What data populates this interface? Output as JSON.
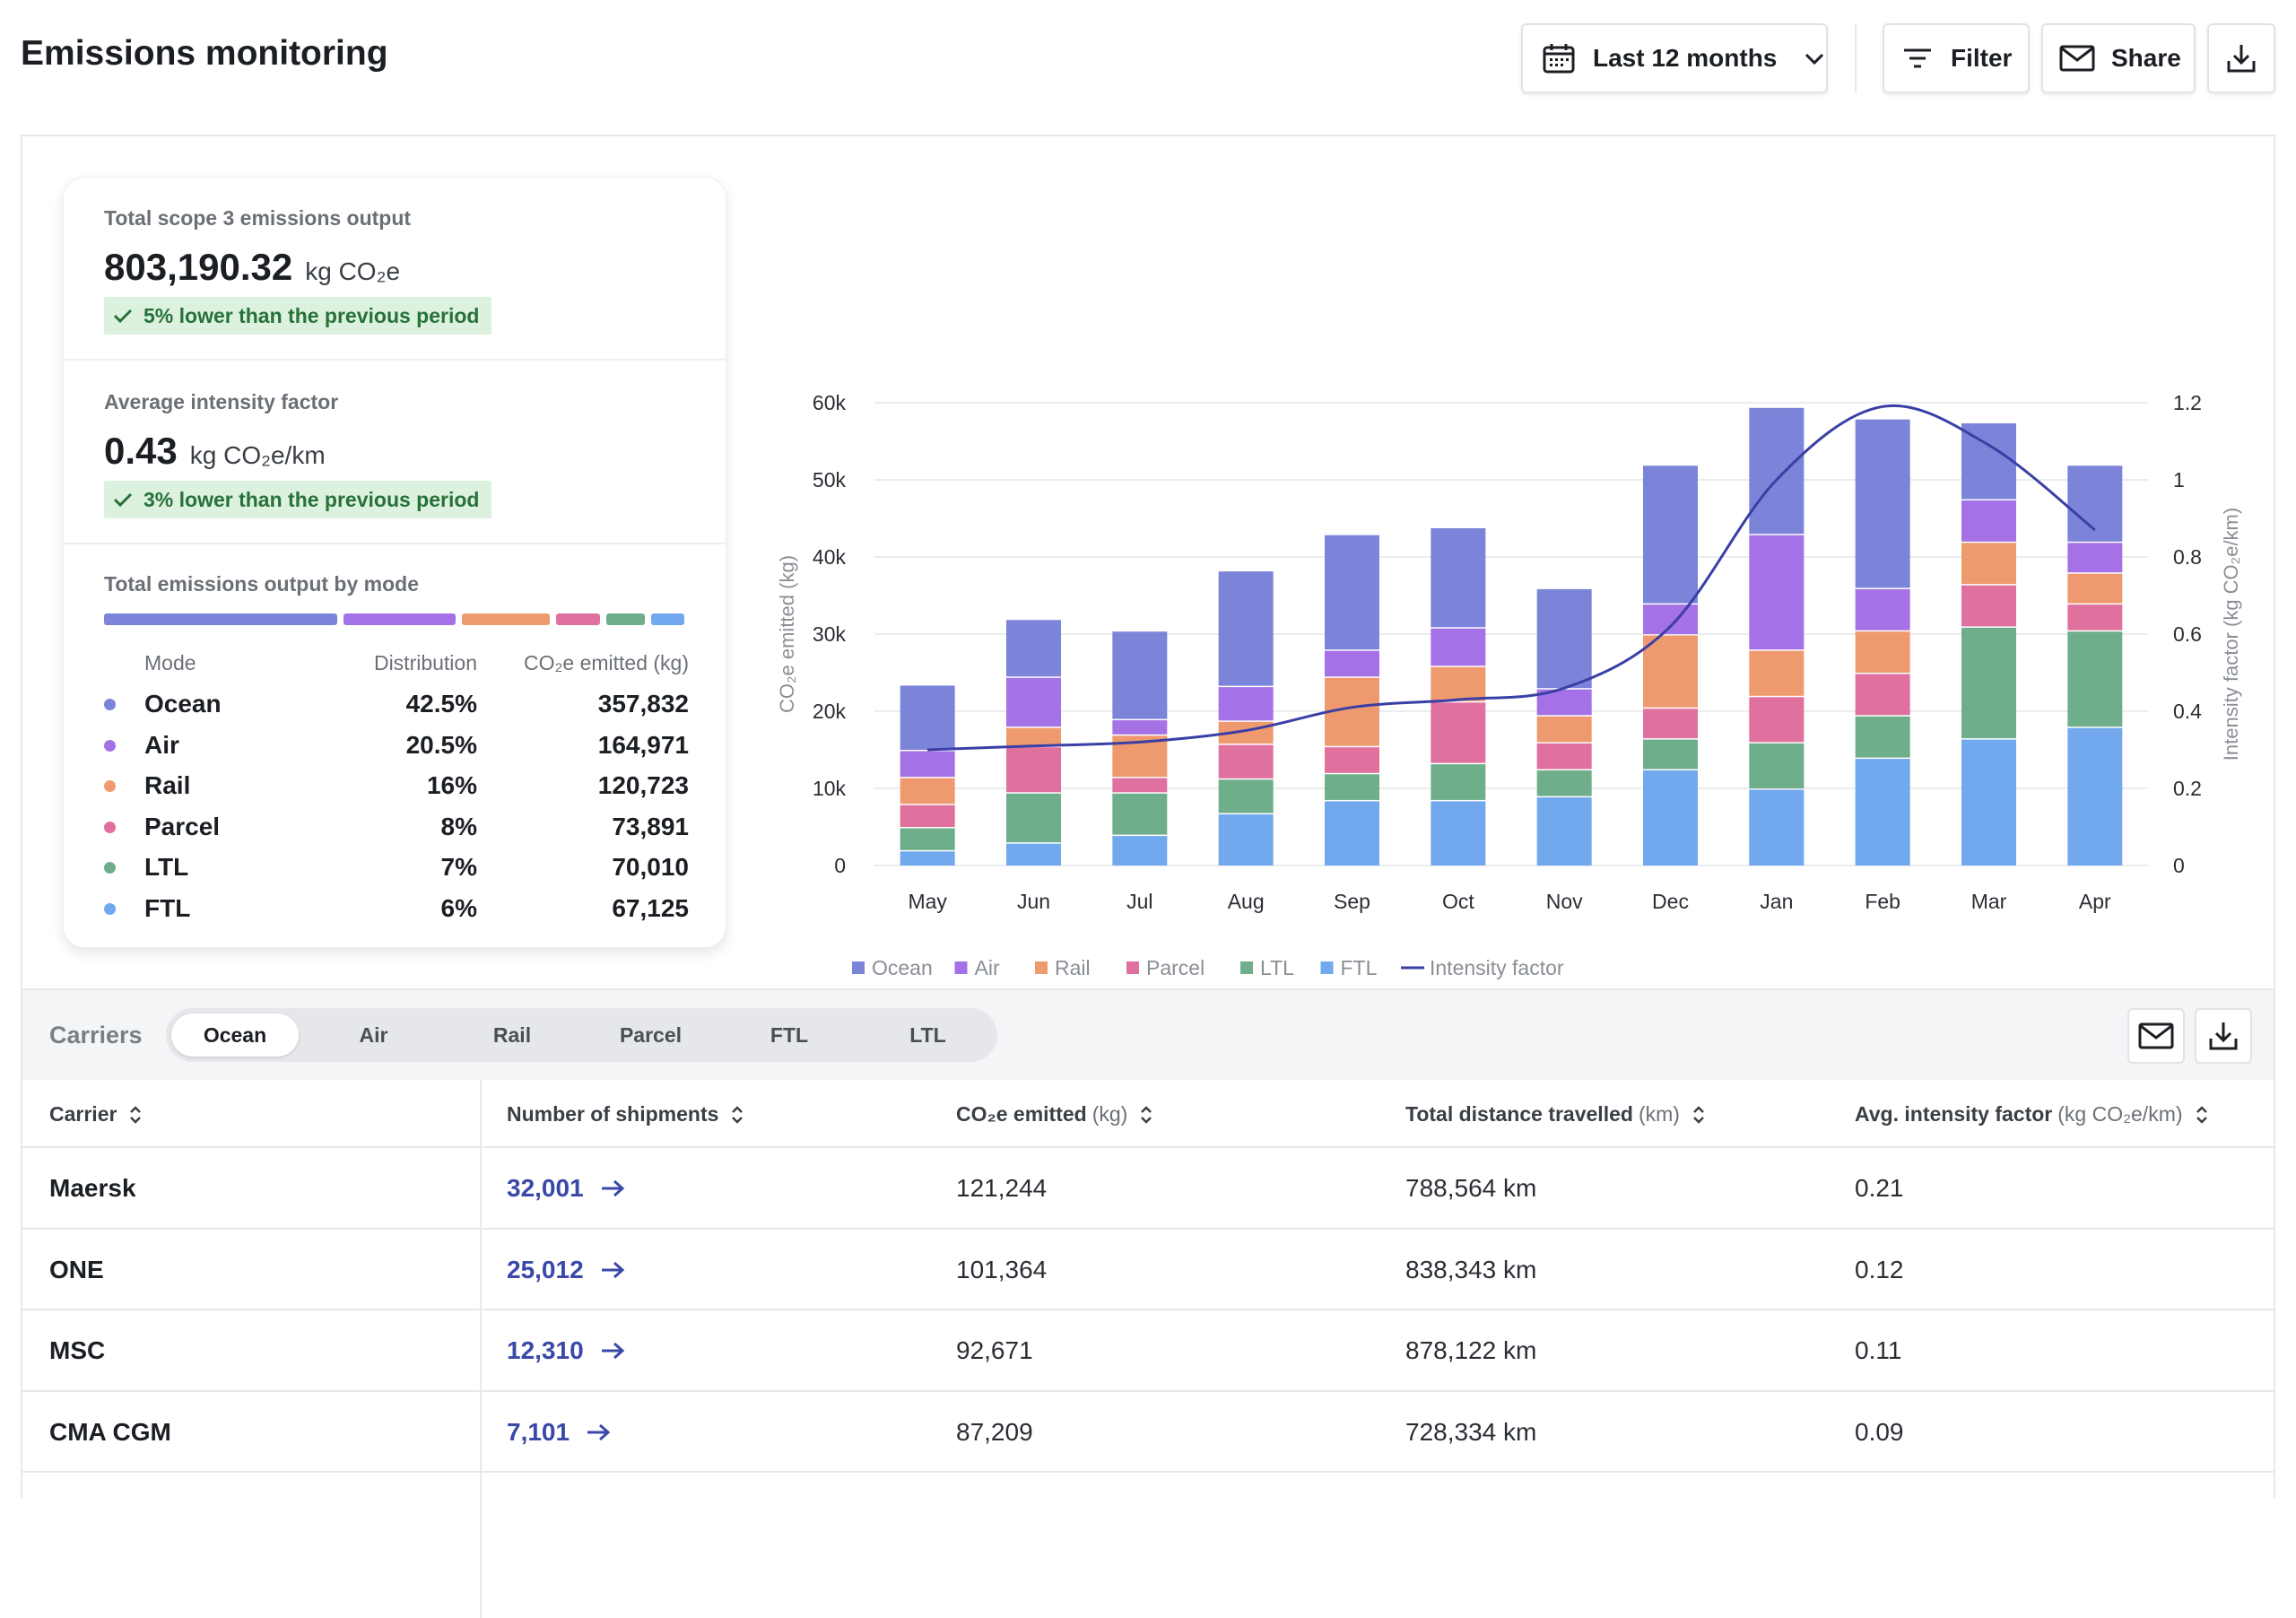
{
  "header": {
    "title": "Emissions monitoring",
    "date_range": "Last 12 months",
    "filter_label": "Filter",
    "share_label": "Share"
  },
  "summary": {
    "total": {
      "label": "Total scope 3 emissions output",
      "value": "803,190.32",
      "unit": "kg CO₂e",
      "change": "5% lower than the previous period"
    },
    "intensity": {
      "label": "Average intensity factor",
      "value": "0.43",
      "unit": "kg CO₂e/km",
      "change": "3% lower than the previous period"
    },
    "by_mode": {
      "label": "Total emissions output by mode",
      "col_mode": "Mode",
      "col_distribution": "Distribution",
      "col_emitted": "CO₂e emitted (kg)",
      "rows": [
        {
          "mode": "Ocean",
          "distribution": "42.5%",
          "emitted": "357,832",
          "color": "#7b84d8",
          "share": 0.425
        },
        {
          "mode": "Air",
          "distribution": "20.5%",
          "emitted": "164,971",
          "color": "#a571e6",
          "share": 0.205
        },
        {
          "mode": "Rail",
          "distribution": "16%",
          "emitted": "120,723",
          "color": "#ee9a6e",
          "share": 0.16
        },
        {
          "mode": "Parcel",
          "distribution": "8%",
          "emitted": "73,891",
          "color": "#e0719f",
          "share": 0.08
        },
        {
          "mode": "LTL",
          "distribution": "7%",
          "emitted": "70,010",
          "color": "#6fae8a",
          "share": 0.07
        },
        {
          "mode": "FTL",
          "distribution": "6%",
          "emitted": "67,125",
          "color": "#71a8ee",
          "share": 0.06
        }
      ]
    }
  },
  "chart_data": {
    "type": "bar",
    "stacked": true,
    "categories": [
      "May",
      "Jun",
      "Jul",
      "Aug",
      "Sep",
      "Oct",
      "Nov",
      "Dec",
      "Jan",
      "Feb",
      "Mar",
      "Apr"
    ],
    "ylabel": "CO₂e emitted (kg)",
    "y2label": "Intensity factor (kg CO₂e/km)",
    "ylim": [
      0,
      60000
    ],
    "y2lim": [
      0,
      1.2
    ],
    "yticks": [
      "0",
      "10k",
      "20k",
      "30k",
      "40k",
      "50k",
      "60k"
    ],
    "y2ticks": [
      "0",
      "0.2",
      "0.4",
      "0.6",
      "0.8",
      "1",
      "1.2"
    ],
    "grid": true,
    "legend_position": "bottom",
    "series": [
      {
        "name": "FTL",
        "color": "#71a8ee",
        "values": [
          2000,
          3000,
          4000,
          6800,
          8500,
          8500,
          9000,
          12500,
          10000,
          14000,
          16500,
          18000
        ]
      },
      {
        "name": "LTL",
        "color": "#6fae8a",
        "values": [
          3000,
          6500,
          5500,
          4500,
          3500,
          4800,
          3500,
          4000,
          6000,
          5500,
          14500,
          12500
        ]
      },
      {
        "name": "Parcel",
        "color": "#e0719f",
        "values": [
          3000,
          6000,
          2000,
          4500,
          3500,
          8000,
          3500,
          4000,
          6000,
          5500,
          5500,
          3500
        ]
      },
      {
        "name": "Rail",
        "color": "#ee9a6e",
        "values": [
          3500,
          2500,
          5500,
          3000,
          9000,
          4600,
          3500,
          9500,
          6000,
          5500,
          5500,
          4000
        ]
      },
      {
        "name": "Air",
        "color": "#a571e6",
        "values": [
          3500,
          6500,
          2000,
          4500,
          3500,
          5000,
          3500,
          4000,
          15000,
          5500,
          5500,
          4000
        ]
      },
      {
        "name": "Ocean",
        "color": "#7b84d8",
        "values": [
          8500,
          7500,
          11500,
          15000,
          15000,
          13000,
          13000,
          18000,
          16500,
          22000,
          10000,
          10000
        ]
      }
    ],
    "intensity_factor": {
      "name": "Intensity factor",
      "color": "#3a3fa6",
      "values": [
        0.3,
        0.31,
        0.32,
        0.35,
        0.41,
        0.43,
        0.46,
        0.62,
        1.0,
        1.19,
        1.09,
        0.87
      ]
    }
  },
  "carriers": {
    "label": "Carriers",
    "tabs": [
      "Ocean",
      "Air",
      "Rail",
      "Parcel",
      "FTL",
      "LTL"
    ],
    "active_tab": "Ocean",
    "columns": [
      {
        "label": "Carrier",
        "unit": ""
      },
      {
        "label": "Number of shipments",
        "unit": ""
      },
      {
        "label": "CO₂e emitted",
        "unit": "(kg)"
      },
      {
        "label": "Total distance travelled",
        "unit": "(km)"
      },
      {
        "label": "Avg. intensity factor",
        "unit": "(kg CO₂e/km)"
      }
    ],
    "rows": [
      {
        "carrier": "Maersk",
        "shipments": "32,001",
        "emitted": "121,244",
        "distance": "788,564 km",
        "intensity": "0.21"
      },
      {
        "carrier": "ONE",
        "shipments": "25,012",
        "emitted": "101,364",
        "distance": "838,343 km",
        "intensity": "0.12"
      },
      {
        "carrier": "MSC",
        "shipments": "12,310",
        "emitted": "92,671",
        "distance": "878,122 km",
        "intensity": "0.11"
      },
      {
        "carrier": "CMA CGM",
        "shipments": "7,101",
        "emitted": "87,209",
        "distance": "728,334 km",
        "intensity": "0.09"
      }
    ]
  }
}
